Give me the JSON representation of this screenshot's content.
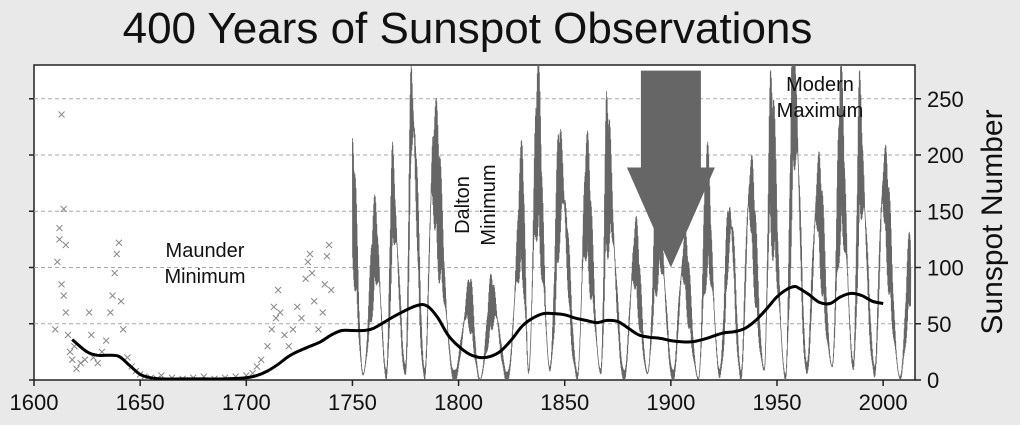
{
  "chart_data": {
    "type": "line",
    "title": "400 Years of Sunspot Observations",
    "ylabel": "Sunspot Number",
    "xlabel": "",
    "xlim": [
      1600,
      2015
    ],
    "ylim": [
      0,
      280
    ],
    "x_ticks": [
      1600,
      1650,
      1700,
      1750,
      1800,
      1850,
      1900,
      1950,
      2000
    ],
    "y_ticks": [
      0,
      50,
      100,
      150,
      200,
      250
    ],
    "grid": "horizontal dashed",
    "annotations": [
      {
        "text": "Maunder Minimum",
        "lines": [
          "Maunder",
          "Minimum"
        ]
      },
      {
        "text": "Dalton Minimum",
        "lines": [
          "Dalton",
          "Minimum"
        ],
        "orientation": "vertical"
      },
      {
        "text": "Modern Maximum",
        "lines": [
          "Modern",
          "Maximum"
        ]
      }
    ],
    "arrow": {
      "x": 1900,
      "y_tip": 100,
      "y_top": 275
    },
    "series": [
      {
        "style": "cross markers (early telescopic observations)",
        "points": [
          [
            1610,
            45
          ],
          [
            1611,
            105
          ],
          [
            1612,
            135
          ],
          [
            1612,
            125
          ],
          [
            1613,
            236
          ],
          [
            1613,
            85
          ],
          [
            1614,
            152
          ],
          [
            1614,
            75
          ],
          [
            1615,
            120
          ],
          [
            1615,
            60
          ],
          [
            1616,
            40
          ],
          [
            1617,
            25
          ],
          [
            1618,
            18
          ],
          [
            1619,
            30
          ],
          [
            1620,
            10
          ],
          [
            1622,
            15
          ],
          [
            1624,
            18
          ],
          [
            1626,
            60
          ],
          [
            1627,
            40
          ],
          [
            1628,
            20
          ],
          [
            1630,
            15
          ],
          [
            1632,
            25
          ],
          [
            1634,
            35
          ],
          [
            1636,
            60
          ],
          [
            1637,
            75
          ],
          [
            1638,
            95
          ],
          [
            1639,
            112
          ],
          [
            1640,
            122
          ],
          [
            1641,
            70
          ],
          [
            1642,
            45
          ],
          [
            1644,
            20
          ],
          [
            1646,
            12
          ],
          [
            1648,
            8
          ],
          [
            1650,
            5
          ],
          [
            1652,
            3
          ],
          [
            1655,
            2
          ],
          [
            1658,
            1
          ],
          [
            1660,
            4
          ],
          [
            1665,
            2
          ],
          [
            1670,
            1
          ],
          [
            1675,
            2
          ],
          [
            1680,
            3
          ],
          [
            1685,
            1
          ],
          [
            1690,
            2
          ],
          [
            1695,
            3
          ],
          [
            1700,
            4
          ],
          [
            1703,
            6
          ],
          [
            1705,
            12
          ],
          [
            1707,
            18
          ],
          [
            1710,
            30
          ],
          [
            1712,
            45
          ],
          [
            1713,
            65
          ],
          [
            1714,
            55
          ],
          [
            1715,
            80
          ],
          [
            1716,
            60
          ],
          [
            1718,
            40
          ],
          [
            1720,
            30
          ],
          [
            1722,
            45
          ],
          [
            1724,
            65
          ],
          [
            1726,
            55
          ],
          [
            1728,
            90
          ],
          [
            1729,
            105
          ],
          [
            1730,
            112
          ],
          [
            1731,
            95
          ],
          [
            1732,
            70
          ],
          [
            1734,
            45
          ],
          [
            1736,
            60
          ],
          [
            1737,
            85
          ],
          [
            1738,
            110
          ],
          [
            1739,
            120
          ],
          [
            1740,
            80
          ]
        ]
      },
      {
        "style": "monthly sunspot number (thin line)",
        "cycle_peaks": [
          [
            1750,
            158
          ],
          [
            1761,
            120
          ],
          [
            1769,
            158
          ],
          [
            1778,
            238
          ],
          [
            1788,
            190
          ],
          [
            1805,
            70
          ],
          [
            1816,
            70
          ],
          [
            1830,
            150
          ],
          [
            1837,
            205
          ],
          [
            1848,
            180
          ],
          [
            1860,
            160
          ],
          [
            1870,
            185
          ],
          [
            1883,
            110
          ],
          [
            1894,
            140
          ],
          [
            1906,
            105
          ],
          [
            1917,
            150
          ],
          [
            1928,
            140
          ],
          [
            1937,
            165
          ],
          [
            1947,
            200
          ],
          [
            1958,
            254
          ],
          [
            1969,
            160
          ],
          [
            1980,
            200
          ],
          [
            1989,
            200
          ],
          [
            2000,
            170
          ],
          [
            2013,
            100
          ]
        ],
        "cycle_minima": [
          [
            1755,
            5
          ],
          [
            1766,
            5
          ],
          [
            1775,
            8
          ],
          [
            1784,
            5
          ],
          [
            1798,
            3
          ],
          [
            1810,
            0
          ],
          [
            1823,
            2
          ],
          [
            1833,
            8
          ],
          [
            1843,
            10
          ],
          [
            1856,
            4
          ],
          [
            1867,
            7
          ],
          [
            1878,
            3
          ],
          [
            1889,
            6
          ],
          [
            1901,
            3
          ],
          [
            1913,
            1
          ],
          [
            1923,
            6
          ],
          [
            1933,
            4
          ],
          [
            1944,
            9
          ],
          [
            1954,
            3
          ],
          [
            1964,
            10
          ],
          [
            1976,
            12
          ],
          [
            1986,
            13
          ],
          [
            1996,
            8
          ],
          [
            2008,
            2
          ]
        ]
      },
      {
        "style": "smoothed average (thick black line)",
        "points": [
          [
            1618,
            36
          ],
          [
            1625,
            25
          ],
          [
            1630,
            22
          ],
          [
            1635,
            22
          ],
          [
            1640,
            21
          ],
          [
            1645,
            13
          ],
          [
            1650,
            5
          ],
          [
            1655,
            2
          ],
          [
            1660,
            1
          ],
          [
            1670,
            1
          ],
          [
            1680,
            1
          ],
          [
            1690,
            1
          ],
          [
            1700,
            2
          ],
          [
            1705,
            4
          ],
          [
            1710,
            8
          ],
          [
            1715,
            14
          ],
          [
            1720,
            21
          ],
          [
            1725,
            26
          ],
          [
            1730,
            30
          ],
          [
            1735,
            34
          ],
          [
            1740,
            40
          ],
          [
            1745,
            44
          ],
          [
            1750,
            44
          ],
          [
            1755,
            44
          ],
          [
            1760,
            46
          ],
          [
            1770,
            57
          ],
          [
            1780,
            66
          ],
          [
            1785,
            66
          ],
          [
            1790,
            56
          ],
          [
            1795,
            40
          ],
          [
            1800,
            30
          ],
          [
            1805,
            23
          ],
          [
            1810,
            20
          ],
          [
            1815,
            21
          ],
          [
            1820,
            26
          ],
          [
            1825,
            36
          ],
          [
            1830,
            48
          ],
          [
            1835,
            55
          ],
          [
            1840,
            59
          ],
          [
            1845,
            59
          ],
          [
            1850,
            58
          ],
          [
            1855,
            55
          ],
          [
            1860,
            53
          ],
          [
            1865,
            51
          ],
          [
            1870,
            53
          ],
          [
            1875,
            52
          ],
          [
            1880,
            46
          ],
          [
            1885,
            40
          ],
          [
            1890,
            38
          ],
          [
            1895,
            37
          ],
          [
            1900,
            35
          ],
          [
            1905,
            34
          ],
          [
            1910,
            34
          ],
          [
            1915,
            36
          ],
          [
            1920,
            39
          ],
          [
            1925,
            42
          ],
          [
            1930,
            43
          ],
          [
            1935,
            46
          ],
          [
            1940,
            53
          ],
          [
            1945,
            63
          ],
          [
            1950,
            74
          ],
          [
            1955,
            81
          ],
          [
            1958,
            83
          ],
          [
            1960,
            82
          ],
          [
            1965,
            76
          ],
          [
            1970,
            69
          ],
          [
            1975,
            68
          ],
          [
            1980,
            74
          ],
          [
            1985,
            77
          ],
          [
            1990,
            75
          ],
          [
            1995,
            70
          ],
          [
            2000,
            68
          ]
        ]
      }
    ]
  }
}
